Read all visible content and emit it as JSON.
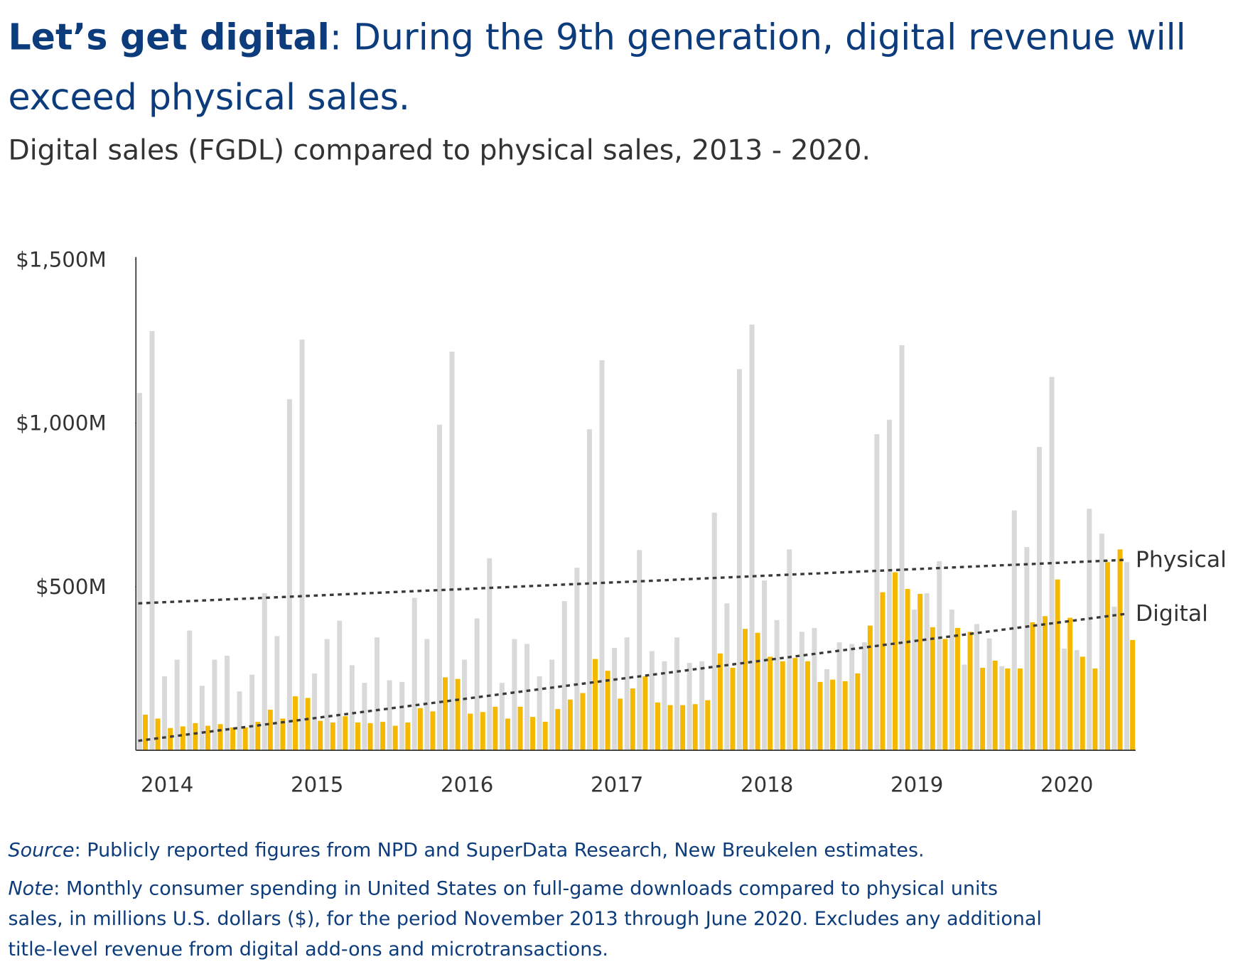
{
  "chart_data": {
    "type": "bar",
    "title": {
      "bold": "Let’s get digital",
      "lines": [
        ": During the 9th generation, digital revenue will",
        "exceed physical sales."
      ]
    },
    "subtitle": "Digital sales (FGDL) compared to physical sales, 2013 - 2020.",
    "categories": [
      null,
      null,
      "2014",
      null,
      null,
      null,
      null,
      null,
      null,
      null,
      null,
      null,
      null,
      null,
      "2015",
      null,
      null,
      null,
      null,
      null,
      null,
      null,
      null,
      null,
      null,
      null,
      "2016",
      null,
      null,
      null,
      null,
      null,
      null,
      null,
      null,
      null,
      null,
      null,
      "2017",
      null,
      null,
      null,
      null,
      null,
      null,
      null,
      null,
      null,
      null,
      null,
      "2018",
      null,
      null,
      null,
      null,
      null,
      null,
      null,
      null,
      null,
      null,
      null,
      "2019",
      null,
      null,
      null,
      null,
      null,
      null,
      null,
      null,
      null,
      null,
      null,
      "2020",
      null,
      null,
      null,
      null,
      null
    ],
    "series": [
      {
        "name": "Physical",
        "color": "#d9d9d9",
        "trend": [
          449,
          582
        ],
        "values": [
          1092,
          1281,
          226,
          277,
          366,
          197,
          277,
          289,
          180,
          231,
          480,
          349,
          1073,
          1255,
          235,
          340,
          396,
          260,
          206,
          345,
          214,
          209,
          466,
          340,
          995,
          1218,
          277,
          403,
          587,
          206,
          340,
          325,
          226,
          277,
          456,
          558,
          981,
          1192,
          313,
          345,
          612,
          303,
          272,
          345,
          267,
          272,
          726,
          449,
          1165,
          1301,
          519,
          398,
          614,
          362,
          374,
          248,
          330,
          325,
          330,
          966,
          1010,
          1238,
          430,
          480,
          578,
          430,
          262,
          386,
          342,
          257,
          733,
          621,
          927,
          1141,
          311,
          306,
          738,
          662,
          439,
          575
        ]
      },
      {
        "name": "Digital",
        "color": "#f5b800",
        "trend": [
          29,
          417
        ],
        "values": [
          109,
          97,
          68,
          73,
          83,
          75,
          80,
          70,
          70,
          87,
          124,
          97,
          165,
          160,
          90,
          85,
          104,
          85,
          83,
          87,
          75,
          85,
          129,
          119,
          223,
          218,
          112,
          117,
          133,
          97,
          133,
          102,
          87,
          126,
          155,
          175,
          279,
          243,
          158,
          189,
          226,
          146,
          138,
          138,
          141,
          153,
          296,
          252,
          371,
          359,
          286,
          272,
          282,
          272,
          209,
          216,
          211,
          235,
          381,
          483,
          544,
          493,
          478,
          376,
          340,
          374,
          362,
          252,
          274,
          250,
          250,
          391,
          410,
          522,
          405,
          286,
          250,
          575,
          614,
          337
        ]
      }
    ],
    "ylim": [
      0,
      1500
    ],
    "yticks": [
      {
        "value": 500,
        "label": "$500M"
      },
      {
        "value": 1000,
        "label": "$1,000M"
      },
      {
        "value": 1500,
        "label": "$1,500M"
      }
    ],
    "source": {
      "label": "Source",
      "text": ": Publicly reported figures from NPD and SuperData Research, New Breukelen estimates."
    },
    "note": {
      "label": "Note",
      "lines": [
        ": Monthly consumer spending in United States on full-game downloads compared to physical units",
        "sales, in millions U.S. dollars ($), for the period November 2013 through June 2020. Excludes any additional",
        "title-level revenue from digital add-ons and microtransactions."
      ]
    }
  }
}
